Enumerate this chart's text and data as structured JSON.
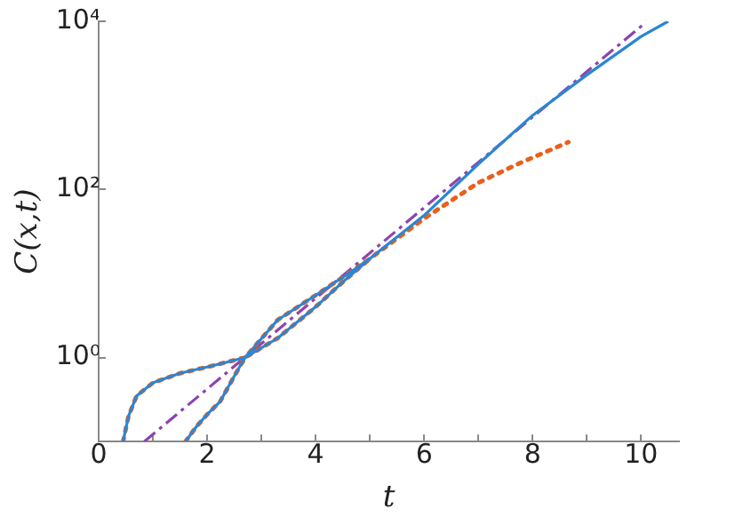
{
  "chart_data": {
    "type": "line",
    "xlabel": "t",
    "ylabel": "C(x,t)",
    "log": "y",
    "grid": false,
    "legend": false,
    "marker": "none",
    "xlim": [
      0,
      10.7
    ],
    "xticks": [
      0,
      {
        "value": 1,
        "label": null
      },
      2,
      {
        "value": 3,
        "label": null
      },
      4,
      {
        "value": 5,
        "label": null
      },
      6,
      {
        "value": 7,
        "label": null
      },
      8,
      {
        "value": 9,
        "label": null
      },
      10
    ],
    "ylim": [
      0.1,
      10000
    ],
    "yticks": [
      {
        "value": 1,
        "label": "10⁰"
      },
      {
        "value": 100,
        "label": "10²"
      },
      {
        "value": 10000,
        "label": "10⁴"
      }
    ],
    "series": [
      {
        "color": "#2a86d4",
        "line_style": "solid",
        "x": [
          0.45,
          0.55,
          0.7,
          1.0,
          1.5,
          2.0,
          2.7,
          3.3,
          4.0,
          4.7,
          5,
          6,
          7,
          8,
          9,
          10,
          10.5
        ],
        "values": [
          0.1,
          0.2,
          0.35,
          0.5,
          0.65,
          0.77,
          1.0,
          2.8,
          5.5,
          11,
          15,
          49,
          200,
          760,
          2300,
          6600,
          10000
        ]
      },
      {
        "color": "#2a86d4",
        "line_style": "solid",
        "x": [
          1.6,
          1.8,
          2.0,
          2.24,
          2.5,
          2.7,
          3.3,
          4.0,
          4.5,
          5
        ],
        "values": [
          0.1,
          0.15,
          0.21,
          0.3,
          0.6,
          1.0,
          1.7,
          4,
          7.9,
          15
        ]
      },
      {
        "color": "#e8601c",
        "line_style": "dotted",
        "x": [
          0.45,
          0.55,
          0.7,
          1.0,
          1.5,
          2.0,
          2.7,
          3.3,
          4.0,
          4.7,
          5,
          6,
          7,
          7.76,
          8.66
        ],
        "values": [
          0.1,
          0.2,
          0.35,
          0.5,
          0.65,
          0.77,
          1.0,
          2.8,
          5.5,
          11,
          15,
          45,
          120,
          205,
          365
        ]
      },
      {
        "color": "#e8601c",
        "line_style": "dotted",
        "x": [
          1.6,
          1.8,
          2.0,
          2.24,
          2.5,
          2.7,
          3.3,
          4.0,
          4.5,
          5
        ],
        "values": [
          0.1,
          0.15,
          0.21,
          0.3,
          0.6,
          1.0,
          1.7,
          4,
          7.9,
          15
        ]
      },
      {
        "color": "#8e44ad",
        "line_style": "dashdot",
        "x": [
          0.84,
          10.07
        ],
        "values": [
          0.1,
          9500
        ]
      }
    ]
  }
}
